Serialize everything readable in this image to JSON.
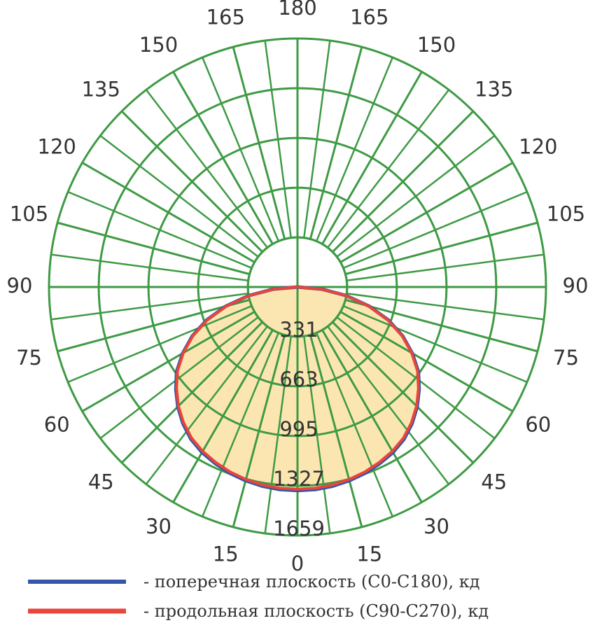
{
  "chart_data": {
    "type": "polar",
    "max": 1659,
    "angle_labels_right": [
      "0",
      "15",
      "30",
      "45",
      "60",
      "75",
      "90",
      "105",
      "120",
      "135",
      "150",
      "165",
      "180"
    ],
    "angle_labels_left": [
      "15",
      "30",
      "45",
      "60",
      "75",
      "90",
      "105",
      "120",
      "135",
      "150",
      "165"
    ],
    "angle_values": [
      0,
      15,
      30,
      45,
      60,
      75,
      90,
      105,
      120,
      135,
      150,
      165,
      180
    ],
    "ring_labels": [
      "331",
      "663",
      "995",
      "1327",
      "1659"
    ],
    "ring_values": [
      331,
      663,
      995,
      1327,
      1659
    ],
    "series": [
      {
        "name": "- поперечная плоскость (C0-C180), кд",
        "color": "#3355aa",
        "angles": [
          0,
          5,
          10,
          15,
          20,
          25,
          30,
          35,
          40,
          45,
          50,
          55,
          60,
          65,
          70,
          75,
          80,
          85,
          90
        ],
        "values": [
          1359,
          1357,
          1350,
          1338,
          1322,
          1300,
          1275,
          1240,
          1190,
          1130,
          1060,
          985,
          885,
          775,
          645,
          495,
          330,
          160,
          0
        ]
      },
      {
        "name": "- продольная плоскость (C90-C270), кд",
        "color": "#e8463a",
        "angles": [
          0,
          5,
          10,
          15,
          20,
          25,
          30,
          35,
          40,
          45,
          50,
          55,
          60,
          65,
          70,
          75,
          80,
          85,
          90
        ],
        "values": [
          1350,
          1348,
          1342,
          1330,
          1314,
          1292,
          1266,
          1232,
          1183,
          1124,
          1054,
          978,
          880,
          770,
          640,
          490,
          325,
          158,
          0
        ]
      }
    ],
    "fill_color": "#fbe6b2",
    "grid_color": "#3e9a44"
  }
}
